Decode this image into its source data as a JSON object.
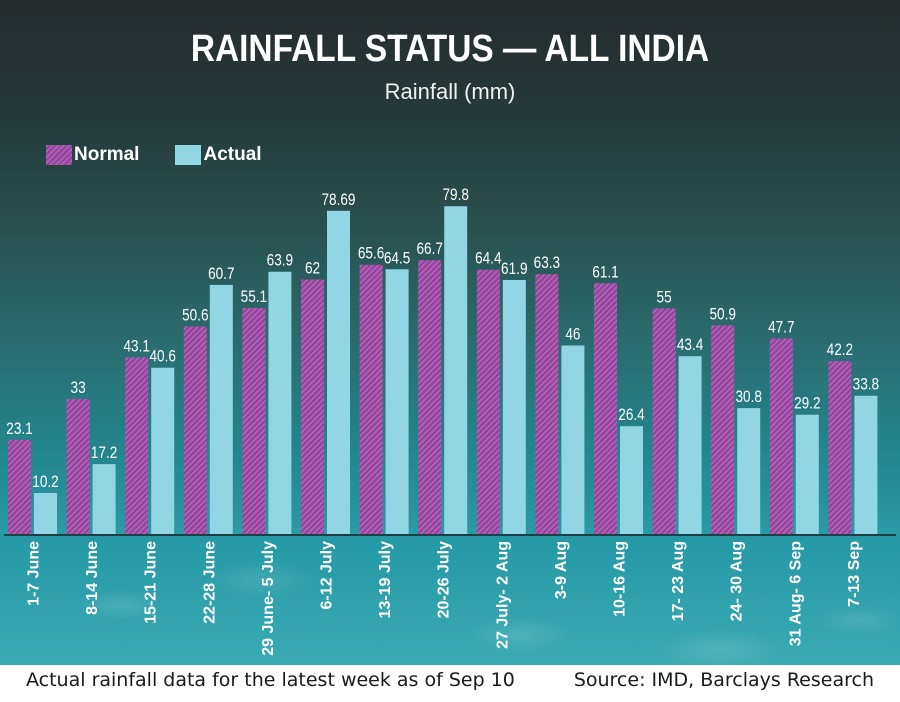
{
  "chart_data": {
    "type": "bar",
    "title": "RAINFALL STATUS — ALL INDIA",
    "subtitle": "Rainfall (mm)",
    "xlabel": "",
    "ylabel": "Rainfall (mm)",
    "ylim": [
      0,
      80
    ],
    "grid": false,
    "legend_position": "top-left",
    "categories": [
      "1-7 June",
      "8-14 June",
      "15-21 June",
      "22-28 June",
      "29 June- 5 July",
      "6-12 July",
      "13-19 July",
      "20-26 July",
      "27 July- 2 Aug",
      "3-9 Aug",
      "10-16 Aug",
      "17- 23 Aug",
      "24- 30 Aug",
      "31 Aug- 6 Sep",
      "7-13 Sep"
    ],
    "series": [
      {
        "name": "Normal",
        "color": "#a04fa8",
        "pattern": "hatched",
        "values": [
          23.1,
          33,
          43.1,
          50.6,
          55.1,
          62,
          65.6,
          66.7,
          64.4,
          63.3,
          61.1,
          55,
          50.9,
          47.7,
          42.2
        ],
        "labels": [
          "23.1",
          "33",
          "43.1",
          "50.6",
          "55.1",
          "62",
          "65.6",
          "66.7",
          "64.4",
          "63.3",
          "61.1",
          "55",
          "50.9",
          "47.7",
          "42.2"
        ]
      },
      {
        "name": "Actual",
        "color": "#93d6e3",
        "pattern": "solid",
        "values": [
          10.2,
          17.2,
          40.6,
          60.7,
          63.9,
          78.69,
          64.5,
          79.8,
          61.9,
          46,
          26.4,
          43.4,
          30.8,
          29.2,
          33.8
        ],
        "labels": [
          "10.2",
          "17.2",
          "40.6",
          "60.7",
          "63.9",
          "78.69",
          "64.5",
          "79.8",
          "61.9",
          "46",
          "26.4",
          "43.4",
          "30.8",
          "29.2",
          "33.8"
        ]
      }
    ]
  },
  "legend": {
    "normal_label": "Normal",
    "actual_label": "Actual"
  },
  "footer": {
    "note": "Actual rainfall data for the latest week as of Sep 10",
    "source": "Source: IMD, Barclays Research"
  }
}
